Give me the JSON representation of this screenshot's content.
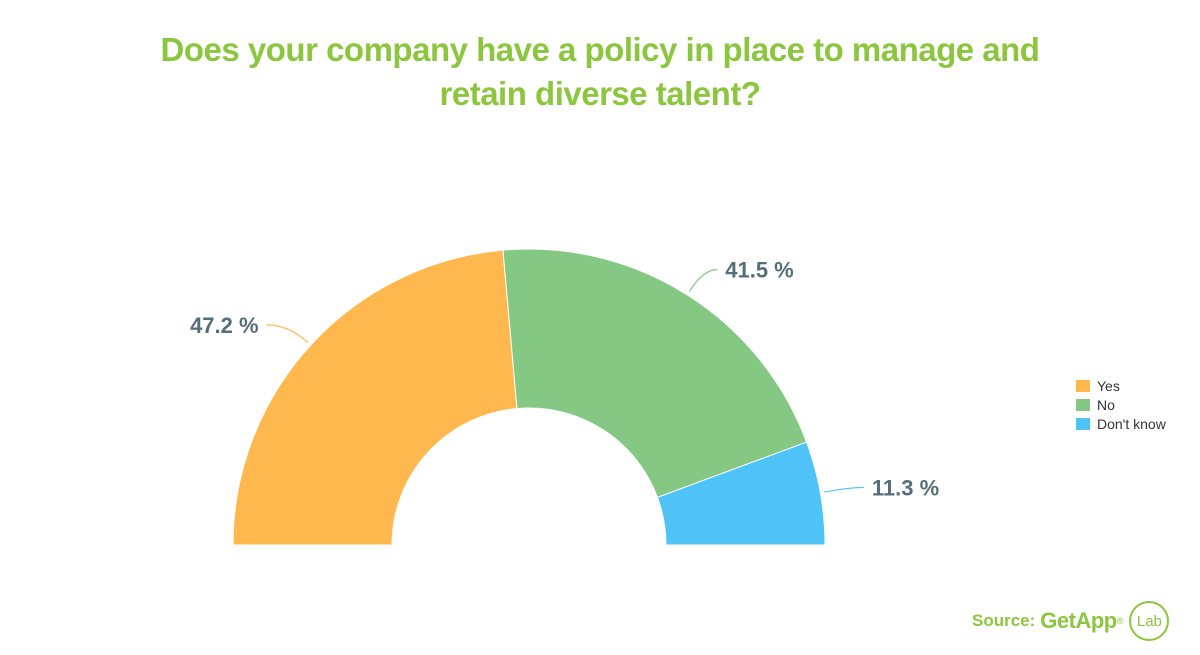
{
  "title_lines": [
    "Does your company have a policy in place to manage and",
    "retain diverse talent?"
  ],
  "colors": {
    "title": "#8cc63f",
    "label": "#546e7a",
    "yes": "#ffb84d",
    "no": "#84c884",
    "dont_know": "#4fc3f7",
    "source": "#8cc63f"
  },
  "chart_data": {
    "type": "pie",
    "shape": "semi-donut",
    "categories": [
      "Yes",
      "No",
      "Don't know"
    ],
    "values": [
      47.2,
      41.5,
      11.3
    ],
    "labels": [
      "47.2 %",
      "41.5 %",
      "11.3 %"
    ],
    "title": "Does your company have a policy in place to manage and retain diverse talent?",
    "legend_position": "right"
  },
  "legend": [
    {
      "label": "Yes",
      "color": "#ffb84d"
    },
    {
      "label": "No",
      "color": "#84c884"
    },
    {
      "label": "Don't know",
      "color": "#4fc3f7"
    }
  ],
  "source": {
    "label": "Source:",
    "brand": "GetApp",
    "brand_mark": "®",
    "badge": "Lab"
  }
}
